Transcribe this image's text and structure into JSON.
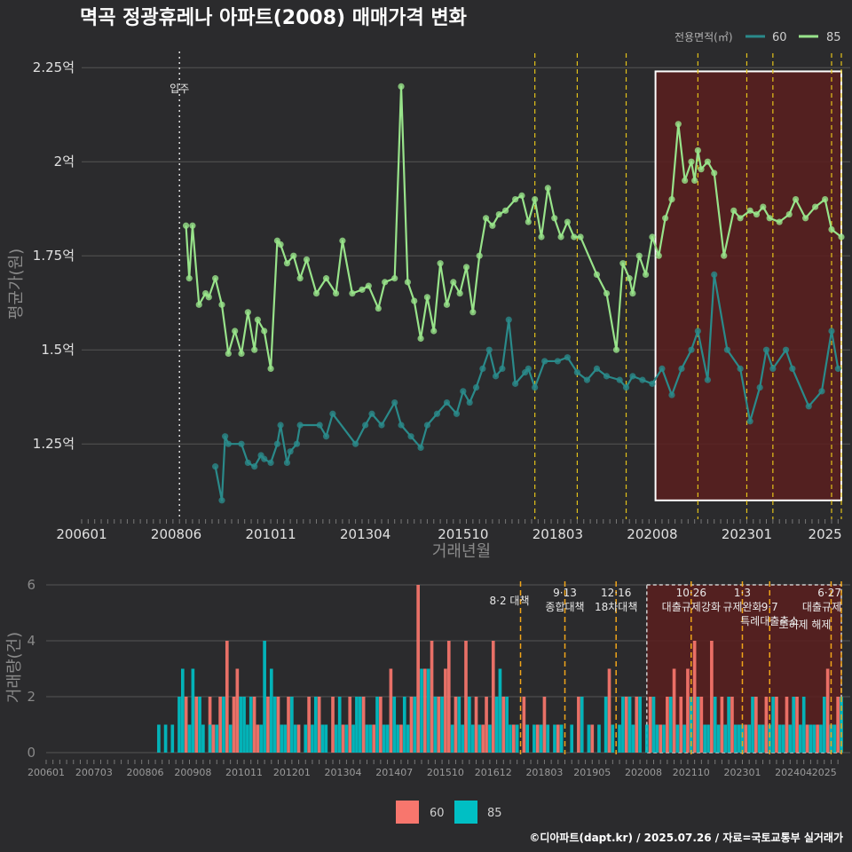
{
  "title": "멱곡 정광휴레나 아파트(2008) 매매가격 변화",
  "caption": "©디아파트(dapt.kr) / 2025.07.26 / 자료=국토교통부 실거래가",
  "colors": {
    "background": "#2b2b2d",
    "grid": "#555555",
    "series_60_line": "#2a8a8a",
    "series_85_line": "#98e38a",
    "bar_60": "#f8766d",
    "bar_85": "#00bfc4",
    "policy_line": "#e3c21a",
    "highlight_fill": "#5a1f1f",
    "highlight_stroke": "#ffffff"
  },
  "chart_data": [
    {
      "type": "line",
      "title": "멱곡 정광휴레나 아파트(2008) 매매가격 변화",
      "xlabel": "거래년월",
      "ylabel": "평균가(원)",
      "x_ticks": [
        "200601",
        "200806",
        "201011",
        "201304",
        "201510",
        "201803",
        "202008",
        "202301",
        "2025"
      ],
      "y_ticks": [
        "1.25억",
        "1.5억",
        "1.75억",
        "2억",
        "2.25억"
      ],
      "y_tick_values": [
        1.25,
        1.5,
        1.75,
        2.0,
        2.25
      ],
      "ylim": [
        1.05,
        2.3
      ],
      "xlim": [
        "2006-01",
        "2025-06"
      ],
      "legend_title": "전용면적(㎡)",
      "legend_position": "top-right",
      "grid": true,
      "annotations": [
        {
          "x": "2008-07",
          "label": "입주"
        }
      ],
      "policy_dates": [
        "2017-08",
        "2018-09",
        "2019-12",
        "2021-10",
        "2023-01",
        "2023-09",
        "2025-03",
        "2025-06"
      ],
      "highlight_range": {
        "x": [
          "2020-09",
          "2025-06"
        ],
        "y": [
          1.1,
          2.24
        ]
      },
      "series": [
        {
          "name": "60",
          "x": [
            "2009-06",
            "2009-08",
            "2009-09",
            "2009-10",
            "2010-02",
            "2010-04",
            "2010-06",
            "2010-08",
            "2010-09",
            "2010-11",
            "2011-01",
            "2011-02",
            "2011-04",
            "2011-05",
            "2011-07",
            "2011-08",
            "2012-02",
            "2012-04",
            "2012-06",
            "2013-01",
            "2013-04",
            "2013-06",
            "2013-09",
            "2014-01",
            "2014-03",
            "2014-06",
            "2014-09",
            "2014-11",
            "2015-02",
            "2015-05",
            "2015-08",
            "2015-10",
            "2015-12",
            "2016-02",
            "2016-04",
            "2016-06",
            "2016-08",
            "2016-10",
            "2016-12",
            "2017-02",
            "2017-05",
            "2017-06",
            "2017-08",
            "2017-11",
            "2018-03",
            "2018-06",
            "2018-09",
            "2018-12",
            "2019-03",
            "2019-06",
            "2019-10",
            "2019-12",
            "2020-02",
            "2020-05",
            "2020-08",
            "2020-11",
            "2021-02",
            "2021-05",
            "2021-08",
            "2021-10",
            "2022-01",
            "2022-03",
            "2022-07",
            "2022-11",
            "2023-02",
            "2023-05",
            "2023-07",
            "2023-09",
            "2024-01",
            "2024-03",
            "2024-08",
            "2024-12",
            "2025-03",
            "2025-05"
          ],
          "values": [
            1.19,
            1.1,
            1.27,
            1.25,
            1.25,
            1.2,
            1.19,
            1.22,
            1.21,
            1.2,
            1.25,
            1.3,
            1.2,
            1.23,
            1.25,
            1.3,
            1.3,
            1.27,
            1.33,
            1.25,
            1.3,
            1.33,
            1.3,
            1.36,
            1.3,
            1.27,
            1.24,
            1.3,
            1.33,
            1.36,
            1.33,
            1.39,
            1.36,
            1.4,
            1.45,
            1.5,
            1.43,
            1.45,
            1.58,
            1.41,
            1.44,
            1.45,
            1.4,
            1.47,
            1.47,
            1.48,
            1.44,
            1.42,
            1.45,
            1.43,
            1.42,
            1.4,
            1.43,
            1.42,
            1.41,
            1.45,
            1.38,
            1.45,
            1.5,
            1.55,
            1.42,
            1.7,
            1.5,
            1.45,
            1.31,
            1.4,
            1.5,
            1.45,
            1.5,
            1.45,
            1.35,
            1.39,
            1.55,
            1.45
          ]
        },
        {
          "name": "85",
          "x": [
            "2008-09",
            "2008-10",
            "2008-11",
            "2009-01",
            "2009-03",
            "2009-04",
            "2009-06",
            "2009-08",
            "2009-10",
            "2009-12",
            "2010-02",
            "2010-04",
            "2010-06",
            "2010-07",
            "2010-09",
            "2010-11",
            "2011-01",
            "2011-02",
            "2011-04",
            "2011-06",
            "2011-08",
            "2011-10",
            "2012-01",
            "2012-04",
            "2012-07",
            "2012-09",
            "2012-12",
            "2013-03",
            "2013-05",
            "2013-08",
            "2013-10",
            "2014-01",
            "2014-03",
            "2014-05",
            "2014-07",
            "2014-09",
            "2014-11",
            "2015-01",
            "2015-03",
            "2015-05",
            "2015-07",
            "2015-09",
            "2015-11",
            "2016-01",
            "2016-03",
            "2016-05",
            "2016-07",
            "2016-09",
            "2016-11",
            "2017-02",
            "2017-04",
            "2017-06",
            "2017-08",
            "2017-10",
            "2017-12",
            "2018-02",
            "2018-04",
            "2018-06",
            "2018-08",
            "2018-10",
            "2019-03",
            "2019-06",
            "2019-09",
            "2019-11",
            "2020-01",
            "2020-02",
            "2020-04",
            "2020-06",
            "2020-08",
            "2020-10",
            "2020-12",
            "2021-02",
            "2021-04",
            "2021-06",
            "2021-08",
            "2021-09",
            "2021-10",
            "2021-11",
            "2022-01",
            "2022-03",
            "2022-06",
            "2022-09",
            "2022-11",
            "2023-02",
            "2023-04",
            "2023-06",
            "2023-08",
            "2023-11",
            "2024-02",
            "2024-04",
            "2024-07",
            "2024-10",
            "2025-01",
            "2025-03",
            "2025-06"
          ],
          "values": [
            1.83,
            1.69,
            1.83,
            1.62,
            1.65,
            1.64,
            1.69,
            1.62,
            1.49,
            1.55,
            1.49,
            1.6,
            1.5,
            1.58,
            1.55,
            1.45,
            1.79,
            1.78,
            1.73,
            1.75,
            1.69,
            1.74,
            1.65,
            1.69,
            1.65,
            1.79,
            1.65,
            1.66,
            1.67,
            1.61,
            1.68,
            1.69,
            2.2,
            1.68,
            1.63,
            1.53,
            1.64,
            1.55,
            1.73,
            1.62,
            1.68,
            1.65,
            1.72,
            1.6,
            1.75,
            1.85,
            1.83,
            1.86,
            1.87,
            1.9,
            1.91,
            1.84,
            1.9,
            1.8,
            1.93,
            1.85,
            1.8,
            1.84,
            1.8,
            1.8,
            1.7,
            1.65,
            1.5,
            1.73,
            1.69,
            1.65,
            1.75,
            1.7,
            1.8,
            1.75,
            1.85,
            1.9,
            2.1,
            1.95,
            2.0,
            1.95,
            2.03,
            1.98,
            2.0,
            1.97,
            1.75,
            1.87,
            1.85,
            1.87,
            1.86,
            1.88,
            1.85,
            1.84,
            1.86,
            1.9,
            1.85,
            1.88,
            1.9,
            1.82,
            1.8
          ]
        }
      ]
    },
    {
      "type": "bar",
      "ylabel": "거래량(건)",
      "x_ticks": [
        "200601",
        "200703",
        "200806",
        "200908",
        "201011",
        "201201",
        "201304",
        "201407",
        "201510",
        "201612",
        "201803",
        "201905",
        "202008",
        "202110",
        "202301",
        "202404",
        "2025"
      ],
      "y_ticks": [
        "0",
        "2",
        "4",
        "6"
      ],
      "ylim": [
        0,
        6.3
      ],
      "xlim": [
        "2006-01",
        "2025-06"
      ],
      "legend_position": "bottom",
      "grid": true,
      "policy_labels": [
        {
          "x": "2017-08",
          "lines": [
            "8·2 대책"
          ]
        },
        {
          "x": "2018-09",
          "lines": [
            "9·13",
            "종합대책"
          ]
        },
        {
          "x": "2019-12",
          "lines": [
            "12·16",
            "18차대책"
          ]
        },
        {
          "x": "2021-10",
          "lines": [
            "10·26",
            "대출규제강화"
          ]
        },
        {
          "x": "2023-01",
          "lines": [
            "1·3",
            "규제완화"
          ]
        },
        {
          "x": "2023-09",
          "lines": [
            "9·7",
            "특례대출축소"
          ]
        },
        {
          "x": "2025-03",
          "lines": [
            "",
            "토허제 해제"
          ]
        },
        {
          "x": "2025-06",
          "lines": [
            "6·27",
            "대출규제"
          ]
        }
      ],
      "highlight_range": {
        "x": [
          "2020-09",
          "2025-06"
        ],
        "y": [
          0,
          6.0
        ]
      },
      "series": [
        {
          "name": "60",
          "x": [
            "2009-06",
            "2009-09",
            "2010-01",
            "2010-02",
            "2010-04",
            "2010-06",
            "2010-08",
            "2010-09",
            "2011-02",
            "2011-03",
            "2011-06",
            "2011-09",
            "2011-12",
            "2012-03",
            "2012-06",
            "2012-09",
            "2013-01",
            "2013-04",
            "2013-06",
            "2013-10",
            "2014-01",
            "2014-03",
            "2014-06",
            "2014-09",
            "2014-12",
            "2015-02",
            "2015-04",
            "2015-06",
            "2015-08",
            "2015-10",
            "2015-11",
            "2016-01",
            "2016-04",
            "2016-07",
            "2016-09",
            "2016-10",
            "2016-12",
            "2017-03",
            "2017-06",
            "2017-09",
            "2018-01",
            "2018-03",
            "2018-07",
            "2019-01",
            "2019-05",
            "2019-10",
            "2020-03",
            "2020-06",
            "2020-10",
            "2021-01",
            "2021-03",
            "2021-05",
            "2021-07",
            "2021-09",
            "2021-11",
            "2022-01",
            "2022-04",
            "2022-07",
            "2022-10",
            "2023-02",
            "2023-05",
            "2023-08",
            "2023-11",
            "2024-02",
            "2024-05",
            "2024-08",
            "2024-11",
            "2025-02",
            "2025-05"
          ],
          "values": [
            2,
            2,
            2,
            1,
            2,
            4,
            2,
            3,
            2,
            1,
            2,
            2,
            2,
            1,
            2,
            2,
            2,
            1,
            2,
            2,
            1,
            2,
            3,
            1,
            2,
            6,
            3,
            4,
            2,
            3,
            4,
            2,
            4,
            2,
            1,
            2,
            4,
            2,
            1,
            2,
            1,
            2,
            1,
            2,
            1,
            3,
            2,
            2,
            2,
            1,
            2,
            3,
            2,
            3,
            4,
            2,
            4,
            2,
            2,
            1,
            2,
            2,
            2,
            2,
            2,
            1,
            1,
            3,
            2
          ]
        },
        {
          "name": "85",
          "x": [
            "2008-10",
            "2008-12",
            "2009-02",
            "2009-04",
            "2009-05",
            "2009-07",
            "2009-08",
            "2009-10",
            "2009-11",
            "2010-01",
            "2010-03",
            "2010-05",
            "2010-07",
            "2010-10",
            "2010-11",
            "2010-12",
            "2011-01",
            "2011-04",
            "2011-05",
            "2011-07",
            "2011-08",
            "2011-10",
            "2011-11",
            "2012-01",
            "2012-02",
            "2012-05",
            "2012-07",
            "2012-08",
            "2012-10",
            "2012-11",
            "2013-02",
            "2013-03",
            "2013-05",
            "2013-07",
            "2013-08",
            "2013-09",
            "2013-11",
            "2013-12",
            "2014-02",
            "2014-04",
            "2014-05",
            "2014-07",
            "2014-08",
            "2014-10",
            "2014-11",
            "2015-01",
            "2015-03",
            "2015-05",
            "2015-07",
            "2015-09",
            "2015-12",
            "2016-02",
            "2016-03",
            "2016-05",
            "2016-06",
            "2016-08",
            "2016-11",
            "2017-01",
            "2017-02",
            "2017-04",
            "2017-05",
            "2017-07",
            "2017-10",
            "2017-12",
            "2018-02",
            "2018-04",
            "2018-06",
            "2018-08",
            "2018-11",
            "2019-02",
            "2019-04",
            "2019-07",
            "2019-09",
            "2019-11",
            "2020-01",
            "2020-02",
            "2020-04",
            "2020-05",
            "2020-07",
            "2020-09",
            "2020-11",
            "2020-12",
            "2021-02",
            "2021-04",
            "2021-06",
            "2021-08",
            "2021-10",
            "2021-12",
            "2022-02",
            "2022-03",
            "2022-05",
            "2022-06",
            "2022-08",
            "2022-09",
            "2022-11",
            "2022-12",
            "2023-01",
            "2023-03",
            "2023-04",
            "2023-06",
            "2023-07",
            "2023-09",
            "2023-10",
            "2023-12",
            "2024-01",
            "2024-03",
            "2024-04",
            "2024-06",
            "2024-07",
            "2024-09",
            "2024-10",
            "2024-12",
            "2025-01",
            "2025-03",
            "2025-04",
            "2025-06"
          ],
          "values": [
            1,
            1,
            1,
            2,
            3,
            1,
            3,
            2,
            1,
            1,
            1,
            2,
            1,
            2,
            2,
            1,
            2,
            1,
            4,
            3,
            2,
            1,
            1,
            2,
            1,
            1,
            1,
            2,
            1,
            1,
            1,
            2,
            1,
            1,
            2,
            2,
            1,
            1,
            2,
            1,
            1,
            2,
            1,
            2,
            1,
            2,
            3,
            3,
            2,
            2,
            1,
            2,
            1,
            2,
            1,
            1,
            1,
            2,
            3,
            2,
            1,
            1,
            1,
            1,
            1,
            1,
            1,
            1,
            1,
            2,
            1,
            1,
            2,
            1,
            1,
            2,
            2,
            1,
            2,
            1,
            2,
            1,
            1,
            2,
            1,
            1,
            2,
            2,
            1,
            1,
            2,
            1,
            1,
            2,
            1,
            1,
            1,
            1,
            2,
            1,
            1,
            1,
            2,
            1,
            1,
            1,
            2,
            1,
            2,
            1,
            1,
            1,
            2,
            1,
            1,
            2
          ]
        }
      ]
    }
  ]
}
